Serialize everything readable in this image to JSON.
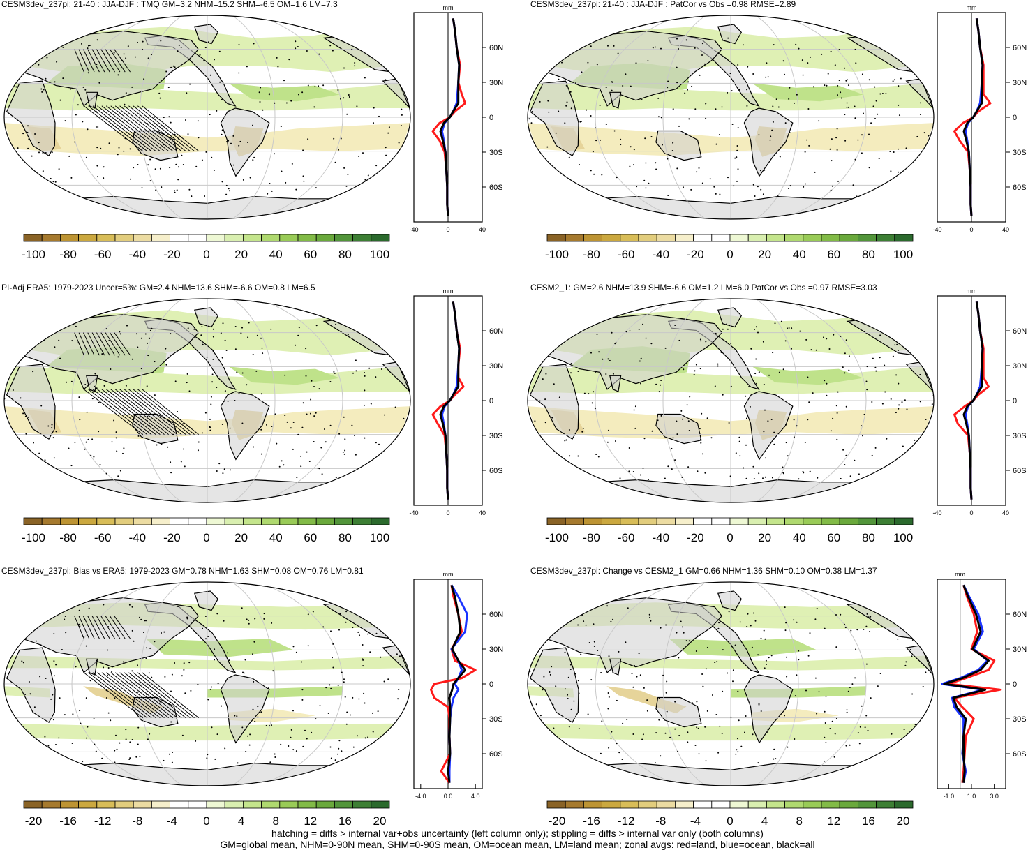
{
  "colors": {
    "land": "#cfcfcf",
    "ocean": "#ffffff",
    "grid": "#c8c8c8",
    "wet_light": "#dff0b4",
    "wet_mid": "#bfe28a",
    "wet_strong": "#a7d36a",
    "dry_light": "#f4ecbe",
    "dry_mid": "#e6d49a",
    "dry_strong": "#cfae5a",
    "zonal_land": "#ff1a1a",
    "zonal_ocean": "#1a33ff",
    "zonal_all": "#000000"
  },
  "colorbar_colors": [
    "#8a6326",
    "#a67a2e",
    "#bd9433",
    "#cba83f",
    "#d8bd58",
    "#e2cd7d",
    "#ecdca2",
    "#f6efcb",
    "#ffffff",
    "#ffffff",
    "#eef8d4",
    "#d9efb0",
    "#c4e58c",
    "#afd96f",
    "#99cb57",
    "#82bb47",
    "#6aa93c",
    "#52953a",
    "#3d7f34",
    "#2b6a2d"
  ],
  "colorbar_ticks_a": [
    "-100",
    "-80",
    "-60",
    "-40",
    "-20",
    "0",
    "20",
    "40",
    "60",
    "80",
    "100"
  ],
  "colorbar_ticks_b": [
    "-20",
    "-16",
    "-12",
    "-8",
    "-4",
    "0",
    "4",
    "8",
    "12",
    "16",
    "20"
  ],
  "zonal_ylabels": [
    "60N",
    "30N",
    "0",
    "30S",
    "60S"
  ],
  "zonal_unit": "mm",
  "panels": [
    {
      "title": "CESM3dev_237pi: 21-40 : JJA-DJF : TMQ GM=3.2 NHM=15.2 SHM=-6.5 OM=1.6 LM=7.3",
      "xticks": [
        "-40",
        "0",
        "40"
      ],
      "cbar": "a",
      "hatched": true
    },
    {
      "title": "CESM3dev_237pi: 21-40 : JJA-DJF : PatCor vs Obs =0.98 RMSE=2.89",
      "xticks": [
        "-40",
        "0",
        "40"
      ],
      "cbar": "a",
      "hatched": false
    },
    {
      "title": "PI-Adj ERA5: 1979-2023 Uncer=5%: GM=2.4 NHM=13.6 SHM=-6.6 OM=0.8 LM=6.5",
      "xticks": [
        "-40",
        "0",
        "40"
      ],
      "cbar": "a",
      "hatched": true
    },
    {
      "title": "CESM2_1: GM=2.6 NHM=13.9 SHM=-6.6 OM=1.2 LM=6.0 PatCor vs Obs =0.97 RMSE=3.03",
      "xticks": [
        "-40",
        "0",
        "40"
      ],
      "cbar": "a",
      "hatched": false
    },
    {
      "title": "CESM3dev_237pi: Bias vs ERA5: 1979-2023 GM=0.78 NHM=1.63 SHM=0.08 OM=0.76 LM=0.81",
      "xticks": [
        "-4.0",
        "0.0",
        "4.0"
      ],
      "cbar": "b",
      "hatched": true
    },
    {
      "title": "CESM3dev_237pi: Change vs CESM2_1 GM=0.66 NHM=1.36 SHM=0.10 OM=0.38 LM=1.37",
      "xticks": [
        "-1.0",
        "1.0",
        "3.0"
      ],
      "cbar": "b",
      "hatched": false
    }
  ],
  "chart_data": [
    {
      "type": "line",
      "title": "CESM3dev_237pi: 21-40 : JJA-DJF : TMQ GM=3.2 NHM=15.2 SHM=-6.5 OM=1.6 LM=7.3",
      "ylabel": "",
      "xlabel": "mm",
      "xlim": [
        -40,
        40
      ],
      "ylim": [
        -90,
        90
      ],
      "x_unit": "mm",
      "series": [
        {
          "name": "land",
          "lat": [
            -85,
            -75,
            -60,
            -45,
            -30,
            -20,
            -12,
            -5,
            0,
            5,
            12,
            20,
            30,
            45,
            60,
            75,
            85
          ],
          "values": [
            0,
            -1,
            -1,
            -2,
            -4,
            -10,
            -18,
            -10,
            2,
            8,
            20,
            16,
            12,
            14,
            10,
            8,
            6
          ]
        },
        {
          "name": "ocean",
          "lat": [
            -85,
            -75,
            -60,
            -45,
            -30,
            -20,
            -12,
            -5,
            0,
            5,
            12,
            20,
            30,
            45,
            60,
            75,
            85
          ],
          "values": [
            0,
            -1,
            -1,
            -2,
            -3,
            -5,
            -7,
            -4,
            2,
            6,
            10,
            11,
            12,
            13,
            10,
            8,
            6
          ]
        },
        {
          "name": "all",
          "lat": [
            -85,
            -75,
            -60,
            -45,
            -30,
            -20,
            -12,
            -5,
            0,
            5,
            12,
            20,
            30,
            45,
            60,
            75,
            85
          ],
          "values": [
            0,
            -1,
            -1,
            -2,
            -3,
            -6,
            -9,
            -5,
            2,
            6,
            12,
            12,
            12,
            13,
            10,
            8,
            6
          ]
        }
      ]
    },
    {
      "type": "line",
      "title": "CESM3dev_237pi: 21-40 : JJA-DJF : PatCor vs Obs =0.98 RMSE=2.89",
      "xlim": [
        -40,
        40
      ],
      "ylim": [
        -90,
        90
      ],
      "x_unit": "mm",
      "series": [
        {
          "name": "land",
          "lat": [
            -85,
            -75,
            -60,
            -45,
            -30,
            -20,
            -12,
            -5,
            0,
            5,
            12,
            20,
            30,
            45,
            60,
            75,
            85
          ],
          "values": [
            0,
            -1,
            -1,
            -2,
            -4,
            -14,
            -20,
            -10,
            2,
            8,
            22,
            14,
            14,
            14,
            10,
            8,
            6
          ]
        },
        {
          "name": "ocean",
          "lat": [
            -85,
            -75,
            -60,
            -45,
            -30,
            -20,
            -12,
            -5,
            0,
            5,
            12,
            20,
            30,
            45,
            60,
            75,
            85
          ],
          "values": [
            0,
            -1,
            -1,
            -2,
            -3,
            -5,
            -7,
            -4,
            2,
            6,
            10,
            11,
            12,
            13,
            10,
            8,
            6
          ]
        },
        {
          "name": "all",
          "lat": [
            -85,
            -75,
            -60,
            -45,
            -30,
            -20,
            -12,
            -5,
            0,
            5,
            12,
            20,
            30,
            45,
            60,
            75,
            85
          ],
          "values": [
            0,
            -1,
            -1,
            -2,
            -3,
            -6,
            -9,
            -5,
            2,
            6,
            12,
            12,
            12,
            13,
            10,
            8,
            6
          ]
        }
      ]
    },
    {
      "type": "line",
      "title": "PI-Adj ERA5: 1979-2023 Uncer=5%: GM=2.4 NHM=13.6 SHM=-6.6 OM=0.8 LM=6.5",
      "xlim": [
        -40,
        40
      ],
      "ylim": [
        -90,
        90
      ],
      "x_unit": "mm",
      "series": [
        {
          "name": "land",
          "lat": [
            -85,
            -75,
            -60,
            -45,
            -30,
            -20,
            -12,
            -5,
            0,
            5,
            12,
            20,
            30,
            45,
            60,
            75,
            85
          ],
          "values": [
            0,
            -1,
            -1,
            -2,
            -4,
            -12,
            -18,
            -9,
            2,
            8,
            18,
            12,
            12,
            14,
            10,
            8,
            6
          ]
        },
        {
          "name": "ocean",
          "lat": [
            -85,
            -75,
            -60,
            -45,
            -30,
            -20,
            -12,
            -5,
            0,
            5,
            12,
            20,
            30,
            45,
            60,
            75,
            85
          ],
          "values": [
            0,
            -1,
            -1,
            -2,
            -3,
            -5,
            -7,
            -4,
            2,
            6,
            10,
            11,
            12,
            13,
            10,
            8,
            6
          ]
        },
        {
          "name": "all",
          "lat": [
            -85,
            -75,
            -60,
            -45,
            -30,
            -20,
            -12,
            -5,
            0,
            5,
            12,
            20,
            30,
            45,
            60,
            75,
            85
          ],
          "values": [
            0,
            -1,
            -1,
            -2,
            -3,
            -6,
            -9,
            -5,
            2,
            6,
            12,
            12,
            12,
            13,
            10,
            8,
            6
          ]
        }
      ]
    },
    {
      "type": "line",
      "title": "CESM2_1: GM=2.6 NHM=13.9 SHM=-6.6 OM=1.2 LM=6.0 PatCor vs Obs =0.97 RMSE=3.03",
      "xlim": [
        -40,
        40
      ],
      "ylim": [
        -90,
        90
      ],
      "x_unit": "mm",
      "series": [
        {
          "name": "land",
          "lat": [
            -85,
            -75,
            -60,
            -45,
            -30,
            -20,
            -12,
            -5,
            0,
            5,
            12,
            20,
            30,
            45,
            60,
            75,
            85
          ],
          "values": [
            0,
            -1,
            -1,
            -2,
            -4,
            -16,
            -20,
            -8,
            2,
            8,
            20,
            14,
            14,
            14,
            10,
            8,
            6
          ]
        },
        {
          "name": "ocean",
          "lat": [
            -85,
            -75,
            -60,
            -45,
            -30,
            -20,
            -12,
            -5,
            0,
            5,
            12,
            20,
            30,
            45,
            60,
            75,
            85
          ],
          "values": [
            0,
            -1,
            -1,
            -2,
            -3,
            -5,
            -7,
            -4,
            2,
            6,
            10,
            11,
            12,
            13,
            10,
            8,
            6
          ]
        },
        {
          "name": "all",
          "lat": [
            -85,
            -75,
            -60,
            -45,
            -30,
            -20,
            -12,
            -5,
            0,
            5,
            12,
            20,
            30,
            45,
            60,
            75,
            85
          ],
          "values": [
            0,
            -1,
            -1,
            -2,
            -3,
            -6,
            -9,
            -5,
            2,
            6,
            12,
            12,
            12,
            13,
            10,
            8,
            6
          ]
        }
      ]
    },
    {
      "type": "line",
      "title": "CESM3dev_237pi: Bias vs ERA5: 1979-2023 GM=0.78 NHM=1.63 SHM=0.08 OM=0.76 LM=0.81",
      "xlim": [
        -5,
        5
      ],
      "ylim": [
        -90,
        90
      ],
      "x_unit": "mm",
      "series": [
        {
          "name": "land",
          "lat": [
            -85,
            -75,
            -60,
            -45,
            -30,
            -20,
            -12,
            -5,
            0,
            5,
            12,
            20,
            30,
            45,
            60,
            75,
            85
          ],
          "values": [
            0.2,
            -1.0,
            0.3,
            0.2,
            0.2,
            0.0,
            -2.0,
            -2.5,
            -2.0,
            2.0,
            4.0,
            1.0,
            0.5,
            2.0,
            1.5,
            0.8,
            0.5
          ]
        },
        {
          "name": "ocean",
          "lat": [
            -85,
            -75,
            -60,
            -45,
            -30,
            -20,
            -12,
            -5,
            0,
            5,
            12,
            20,
            30,
            45,
            60,
            75,
            85
          ],
          "values": [
            0.2,
            0.2,
            0.3,
            0.2,
            0.3,
            0.5,
            0.8,
            1.5,
            1.0,
            1.5,
            2.0,
            1.5,
            0.5,
            2.5,
            2.8,
            1.5,
            0.5
          ]
        },
        {
          "name": "all",
          "lat": [
            -85,
            -75,
            -60,
            -45,
            -30,
            -20,
            -12,
            -5,
            0,
            5,
            12,
            20,
            30,
            45,
            60,
            75,
            85
          ],
          "values": [
            0.2,
            0.0,
            0.3,
            0.2,
            0.3,
            0.3,
            0.2,
            0.6,
            0.8,
            1.5,
            2.5,
            1.5,
            0.6,
            1.8,
            1.5,
            1.0,
            0.5
          ]
        }
      ]
    },
    {
      "type": "line",
      "title": "CESM3dev_237pi: Change vs CESM2_1 GM=0.66 NHM=1.36 SHM=0.10 OM=0.38 LM=1.37",
      "xlim": [
        -2,
        4
      ],
      "ylim": [
        -90,
        90
      ],
      "x_unit": "mm",
      "series": [
        {
          "name": "land",
          "lat": [
            -85,
            -75,
            -60,
            -45,
            -30,
            -20,
            -12,
            -5,
            0,
            5,
            12,
            20,
            30,
            45,
            60,
            75,
            85
          ],
          "values": [
            0.2,
            0.3,
            0.4,
            0.5,
            1.2,
            0.2,
            -0.5,
            3.5,
            -1.0,
            0.5,
            2.5,
            3.0,
            1.0,
            1.5,
            1.2,
            0.6,
            0.3
          ]
        },
        {
          "name": "ocean",
          "lat": [
            -85,
            -75,
            -60,
            -45,
            -30,
            -20,
            -12,
            -5,
            0,
            5,
            12,
            20,
            30,
            45,
            60,
            75,
            85
          ],
          "values": [
            0.3,
            0.5,
            0.2,
            0.3,
            0.3,
            -0.5,
            -0.7,
            2.0,
            -1.6,
            0.0,
            1.6,
            2.4,
            1.2,
            2.0,
            1.6,
            0.8,
            0.3
          ]
        },
        {
          "name": "all",
          "lat": [
            -85,
            -75,
            -60,
            -45,
            -30,
            -20,
            -12,
            -5,
            0,
            5,
            12,
            20,
            30,
            45,
            60,
            75,
            85
          ],
          "values": [
            0.3,
            0.4,
            0.3,
            0.3,
            0.5,
            -0.3,
            -0.6,
            2.2,
            -1.4,
            0.2,
            1.8,
            2.5,
            1.1,
            1.8,
            1.4,
            0.7,
            0.3
          ]
        }
      ]
    }
  ],
  "footer": {
    "line1": "hatching = diffs > internal var+obs uncertainty (left column only); stippling = diffs > internal var only (both columns)",
    "line2": "GM=global mean, NHM=0-90N mean, SHM=0-90S mean, OM=ocean mean, LM=land mean; zonal avgs: red=land, blue=ocean, black=all"
  }
}
